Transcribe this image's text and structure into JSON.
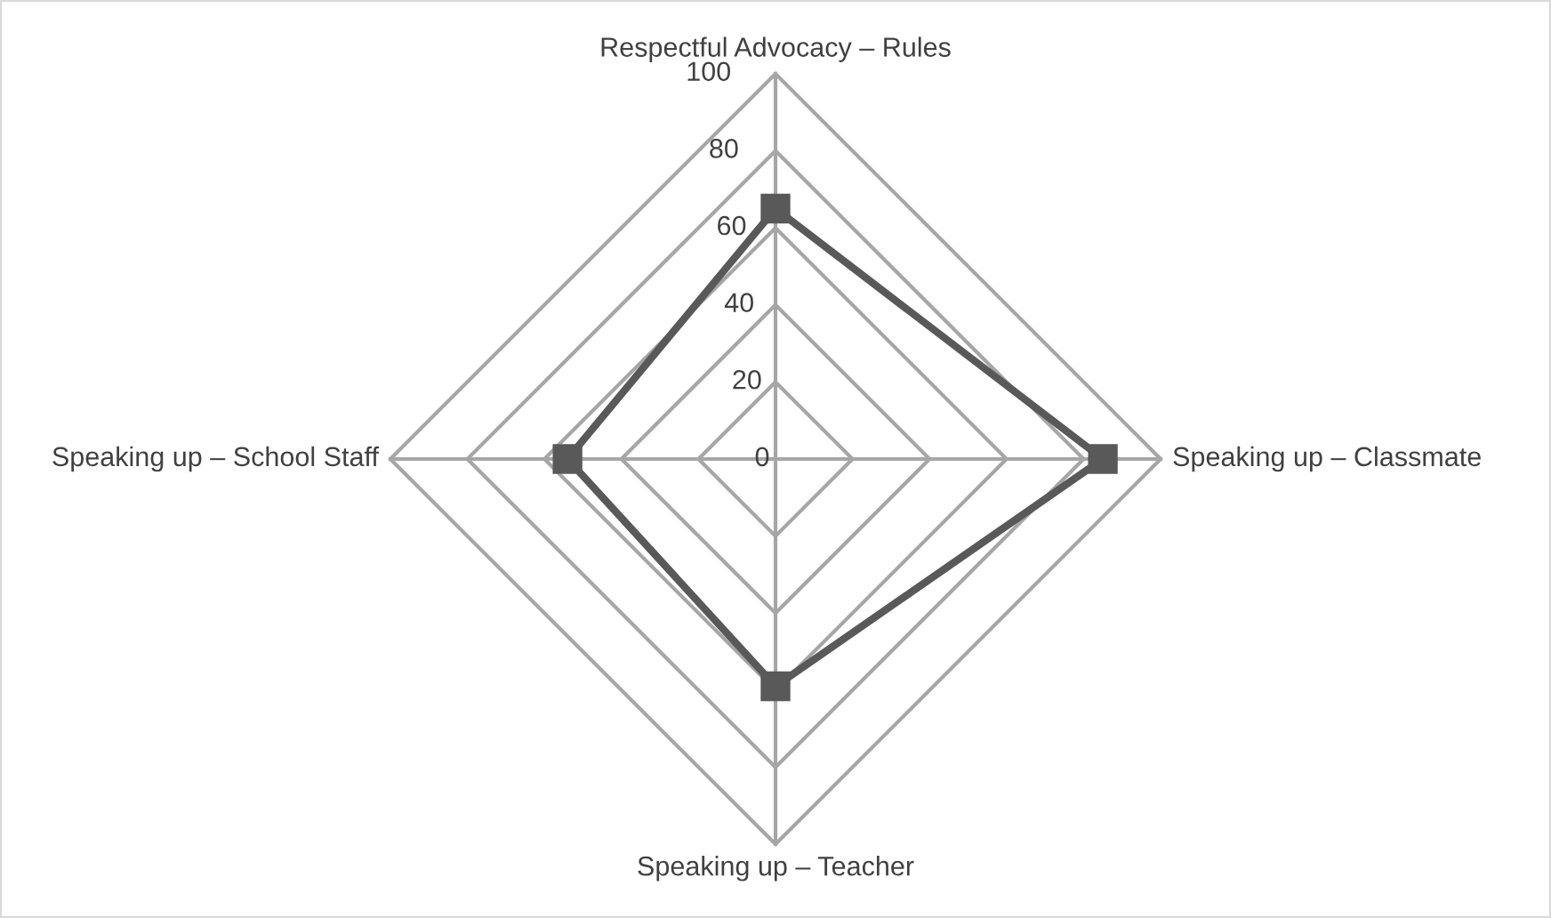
{
  "chart_data": {
    "type": "radar",
    "categories": [
      "Respectful Advocacy – Rules",
      "Speaking up – Classmate",
      "Speaking up – Teacher",
      "Speaking up – School Staff"
    ],
    "series": [
      {
        "color": "#595959",
        "values": [
          65,
          85,
          59,
          54
        ]
      }
    ],
    "ylim": [
      0,
      100
    ],
    "yticks": [
      0,
      20,
      40,
      60,
      80,
      100
    ],
    "grid": true,
    "marker": "square",
    "line_style": "solid"
  }
}
